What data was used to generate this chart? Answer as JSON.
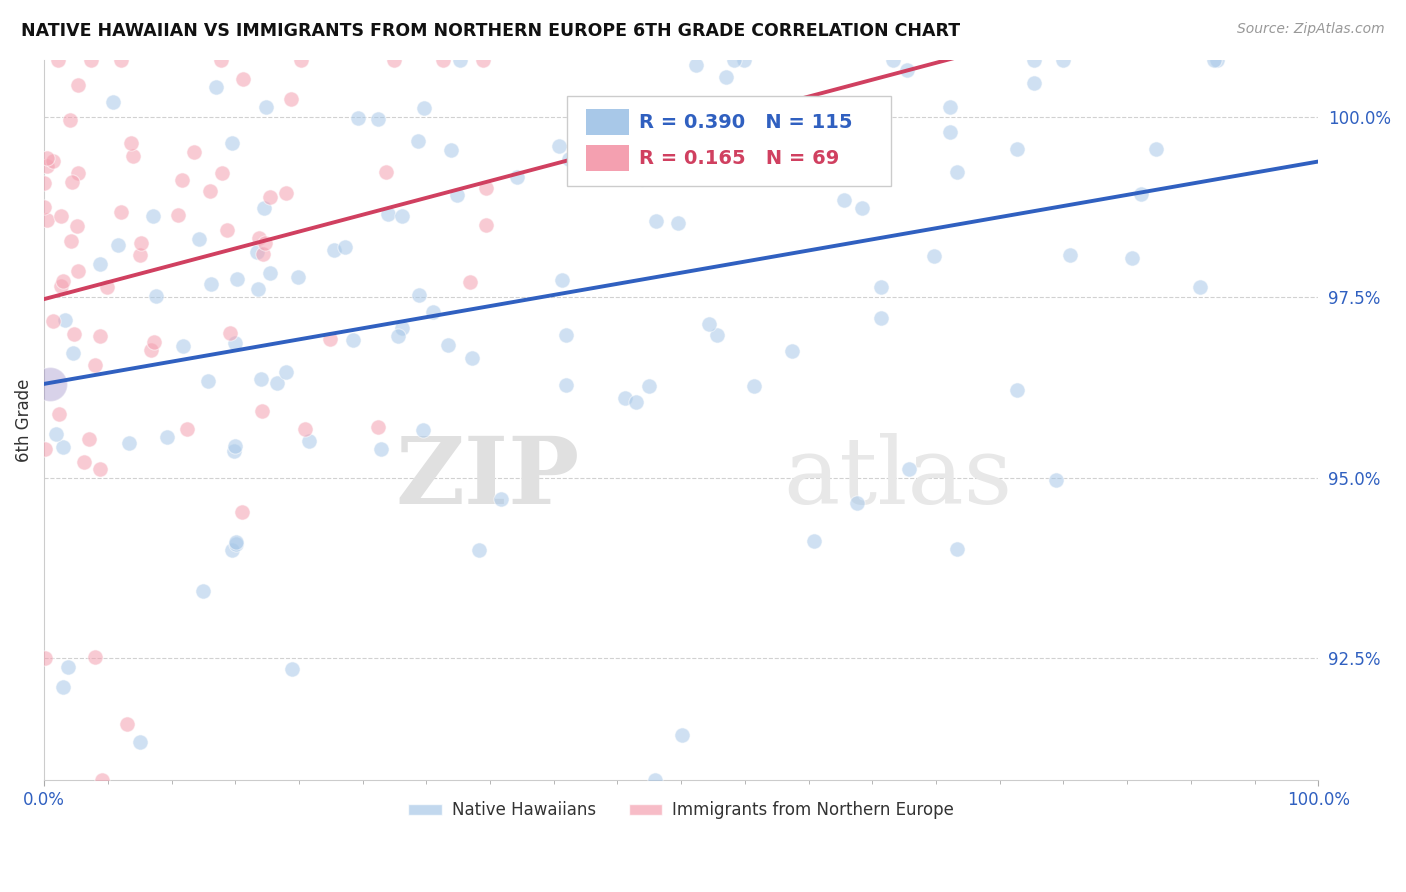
{
  "title": "NATIVE HAWAIIAN VS IMMIGRANTS FROM NORTHERN EUROPE 6TH GRADE CORRELATION CHART",
  "source": "Source: ZipAtlas.com",
  "ylabel": "6th Grade",
  "xlim": [
    0.0,
    1.0
  ],
  "ylim": [
    0.908,
    1.008
  ],
  "yticks": [
    0.925,
    0.95,
    0.975,
    1.0
  ],
  "ytick_labels": [
    "92.5%",
    "95.0%",
    "97.5%",
    "100.0%"
  ],
  "xtick_labels": [
    "0.0%",
    "100.0%"
  ],
  "blue_R": 0.39,
  "blue_N": 115,
  "pink_R": 0.165,
  "pink_N": 69,
  "blue_color": "#a8c8e8",
  "pink_color": "#f4a0b0",
  "blue_line_color": "#3060c0",
  "pink_line_color": "#d04060",
  "legend_blue_label": "Native Hawaiians",
  "legend_pink_label": "Immigrants from Northern Europe",
  "watermark_zip": "ZIP",
  "watermark_atlas": "atlas",
  "background_color": "#ffffff",
  "grid_color": "#cccccc",
  "title_color": "#111111",
  "tick_color": "#3060c0",
  "seed": 7
}
